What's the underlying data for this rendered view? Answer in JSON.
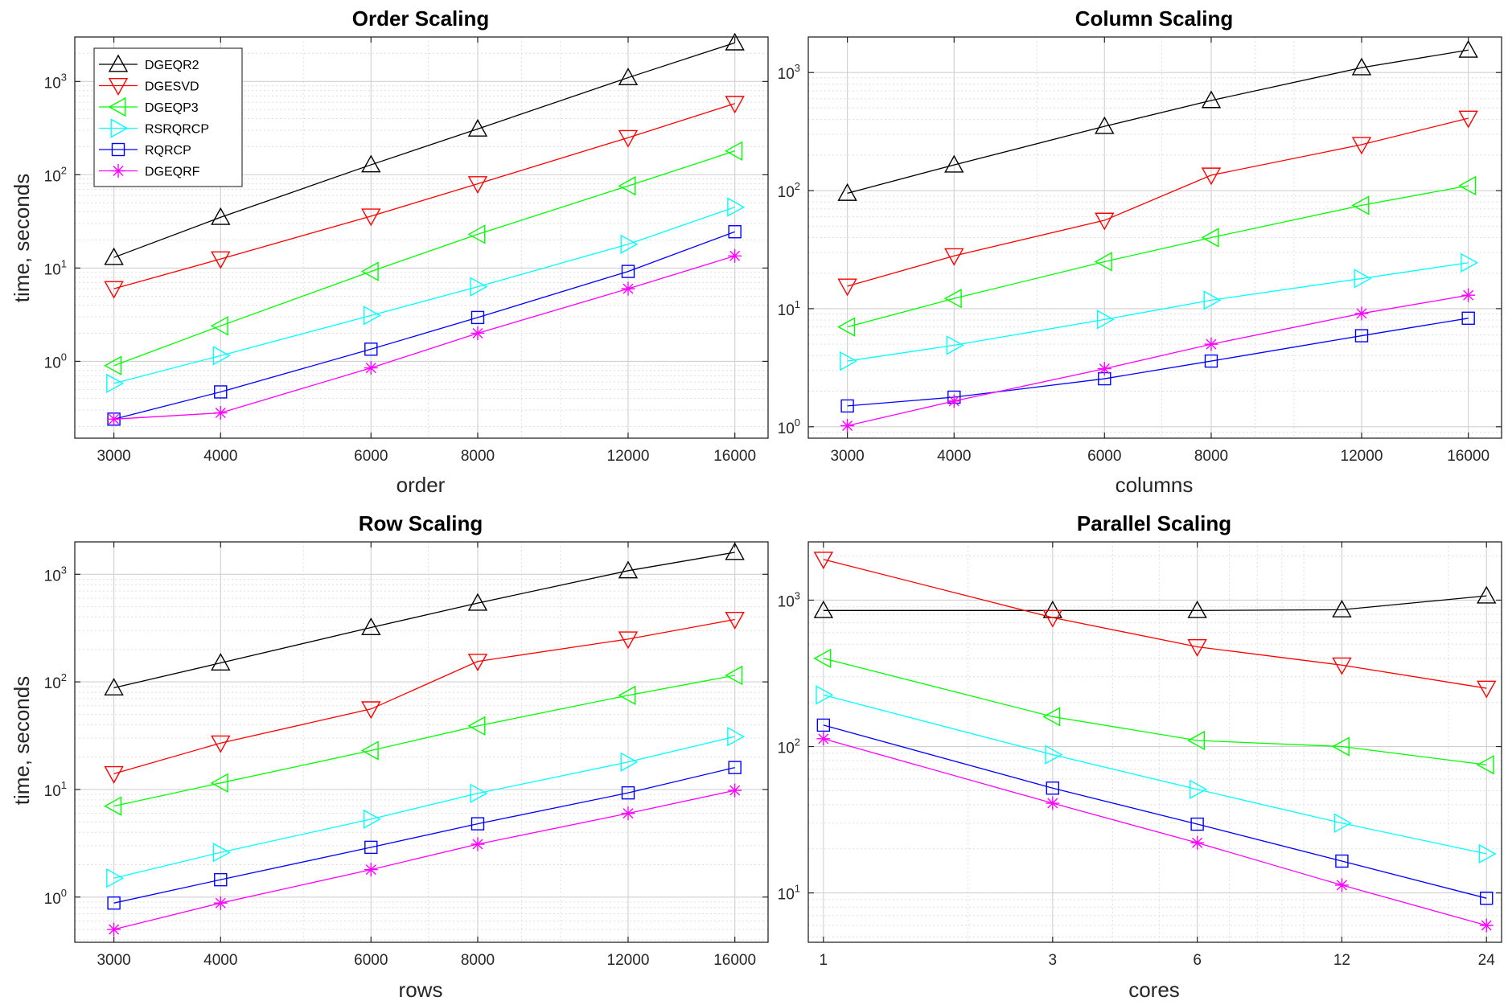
{
  "legend": [
    {
      "name": "DGEQR2",
      "color": "#000000",
      "marker": "triangle-up"
    },
    {
      "name": "DGESVD",
      "color": "#ff0000",
      "marker": "triangle-down"
    },
    {
      "name": "DGEQP3",
      "color": "#00ff00",
      "marker": "triangle-left"
    },
    {
      "name": "RSRQRCP",
      "color": "#00ffff",
      "marker": "triangle-right"
    },
    {
      "name": "RQRCP",
      "color": "#0000ff",
      "marker": "square"
    },
    {
      "name": "DGEQRF",
      "color": "#ff00ff",
      "marker": "asterisk"
    }
  ],
  "chart_data": [
    {
      "type": "line",
      "title": "Order Scaling",
      "xlabel": "order",
      "ylabel": "time, seconds",
      "xscale": "log",
      "yscale": "log",
      "xlim": [
        2700,
        17500
      ],
      "ylim": [
        0.15,
        3000
      ],
      "x": [
        3000,
        4000,
        6000,
        8000,
        12000,
        16000
      ],
      "xticks": [
        "3000",
        "4000",
        "6000",
        "8000",
        "12000",
        "16000"
      ],
      "yticks": [
        {
          "value": 1,
          "label": "10",
          "exp": "0"
        },
        {
          "value": 10,
          "label": "10",
          "exp": "1"
        },
        {
          "value": 100,
          "label": "10",
          "exp": "2"
        },
        {
          "value": 1000,
          "label": "10",
          "exp": "3"
        }
      ],
      "grid": true,
      "legend_position": "top-left",
      "series": [
        {
          "name": "DGEQR2",
          "values": [
            13,
            35,
            128,
            310,
            1100,
            2600
          ]
        },
        {
          "name": "DGESVD",
          "values": [
            6,
            12.5,
            36,
            80,
            250,
            580
          ]
        },
        {
          "name": "DGEQP3",
          "values": [
            0.9,
            2.4,
            9.2,
            23,
            76,
            180
          ]
        },
        {
          "name": "RSRQRCP",
          "values": [
            0.58,
            1.15,
            3.1,
            6.3,
            18,
            45
          ]
        },
        {
          "name": "RQRCP",
          "values": [
            0.24,
            0.47,
            1.35,
            2.95,
            9.2,
            24.5
          ]
        },
        {
          "name": "DGEQRF",
          "values": [
            0.24,
            0.28,
            0.85,
            2,
            6,
            13.5
          ]
        }
      ]
    },
    {
      "type": "line",
      "title": "Column Scaling",
      "xlabel": "columns",
      "ylabel": "",
      "xscale": "log",
      "yscale": "log",
      "xlim": [
        2700,
        17500
      ],
      "ylim": [
        0.8,
        2000
      ],
      "x": [
        3000,
        4000,
        6000,
        8000,
        12000,
        16000
      ],
      "xticks": [
        "3000",
        "4000",
        "6000",
        "8000",
        "12000",
        "16000"
      ],
      "yticks": [
        {
          "value": 1,
          "label": "10",
          "exp": "0"
        },
        {
          "value": 10,
          "label": "10",
          "exp": "1"
        },
        {
          "value": 100,
          "label": "10",
          "exp": "2"
        },
        {
          "value": 1000,
          "label": "10",
          "exp": "3"
        }
      ],
      "grid": true,
      "series": [
        {
          "name": "DGEQR2",
          "values": [
            95,
            165,
            350,
            580,
            1100,
            1550
          ]
        },
        {
          "name": "DGESVD",
          "values": [
            15.5,
            28,
            56,
            135,
            245,
            410
          ]
        },
        {
          "name": "DGEQP3",
          "values": [
            7,
            12.2,
            25,
            40,
            75,
            110
          ]
        },
        {
          "name": "RSRQRCP",
          "values": [
            3.6,
            4.9,
            8.1,
            11.8,
            18,
            24.5
          ]
        },
        {
          "name": "RQRCP",
          "values": [
            1.5,
            1.78,
            2.55,
            3.6,
            5.9,
            8.3
          ]
        },
        {
          "name": "DGEQRF",
          "values": [
            1.02,
            1.65,
            3.1,
            5,
            9.1,
            13
          ]
        }
      ]
    },
    {
      "type": "line",
      "title": "Row Scaling",
      "xlabel": "rows",
      "ylabel": "time, seconds",
      "xscale": "log",
      "yscale": "log",
      "xlim": [
        2700,
        17500
      ],
      "ylim": [
        0.38,
        2000
      ],
      "x": [
        3000,
        4000,
        6000,
        8000,
        12000,
        16000
      ],
      "xticks": [
        "3000",
        "4000",
        "6000",
        "8000",
        "12000",
        "16000"
      ],
      "yticks": [
        {
          "value": 1,
          "label": "10",
          "exp": "0"
        },
        {
          "value": 10,
          "label": "10",
          "exp": "1"
        },
        {
          "value": 100,
          "label": "10",
          "exp": "2"
        },
        {
          "value": 1000,
          "label": "10",
          "exp": "3"
        }
      ],
      "grid": true,
      "series": [
        {
          "name": "DGEQR2",
          "values": [
            88,
            150,
            320,
            540,
            1080,
            1600
          ]
        },
        {
          "name": "DGESVD",
          "values": [
            14,
            27,
            56,
            155,
            250,
            380
          ]
        },
        {
          "name": "DGEQP3",
          "values": [
            7,
            11.5,
            23,
            39,
            75,
            115
          ]
        },
        {
          "name": "RSRQRCP",
          "values": [
            1.5,
            2.6,
            5.3,
            9.2,
            18,
            31
          ]
        },
        {
          "name": "RQRCP",
          "values": [
            0.88,
            1.45,
            2.9,
            4.8,
            9.3,
            16
          ]
        },
        {
          "name": "DGEQRF",
          "values": [
            0.5,
            0.88,
            1.8,
            3.1,
            6,
            9.8
          ]
        }
      ]
    },
    {
      "type": "line",
      "title": "Parallel Scaling",
      "xlabel": "cores",
      "ylabel": "",
      "xscale": "log",
      "yscale": "log",
      "xlim": [
        0.93,
        25.8
      ],
      "ylim": [
        4.6,
        2500
      ],
      "x": [
        1,
        3,
        6,
        12,
        24
      ],
      "xticks": [
        "1",
        "3",
        "6",
        "12",
        "24"
      ],
      "yticks": [
        {
          "value": 10,
          "label": "10",
          "exp": "1"
        },
        {
          "value": 100,
          "label": "10",
          "exp": "2"
        },
        {
          "value": 1000,
          "label": "10",
          "exp": "3"
        }
      ],
      "grid": true,
      "series": [
        {
          "name": "DGEQR2",
          "values": [
            850,
            850,
            850,
            860,
            1070
          ]
        },
        {
          "name": "DGESVD",
          "values": [
            1900,
            760,
            480,
            360,
            250
          ]
        },
        {
          "name": "DGEQP3",
          "values": [
            400,
            160,
            110,
            100,
            75
          ]
        },
        {
          "name": "RSRQRCP",
          "values": [
            225,
            88,
            51,
            30,
            18.5
          ]
        },
        {
          "name": "RQRCP",
          "values": [
            140,
            52,
            29.5,
            16.5,
            9.2
          ]
        },
        {
          "name": "DGEQRF",
          "values": [
            113,
            41,
            22,
            11.3,
            6
          ]
        }
      ]
    }
  ]
}
